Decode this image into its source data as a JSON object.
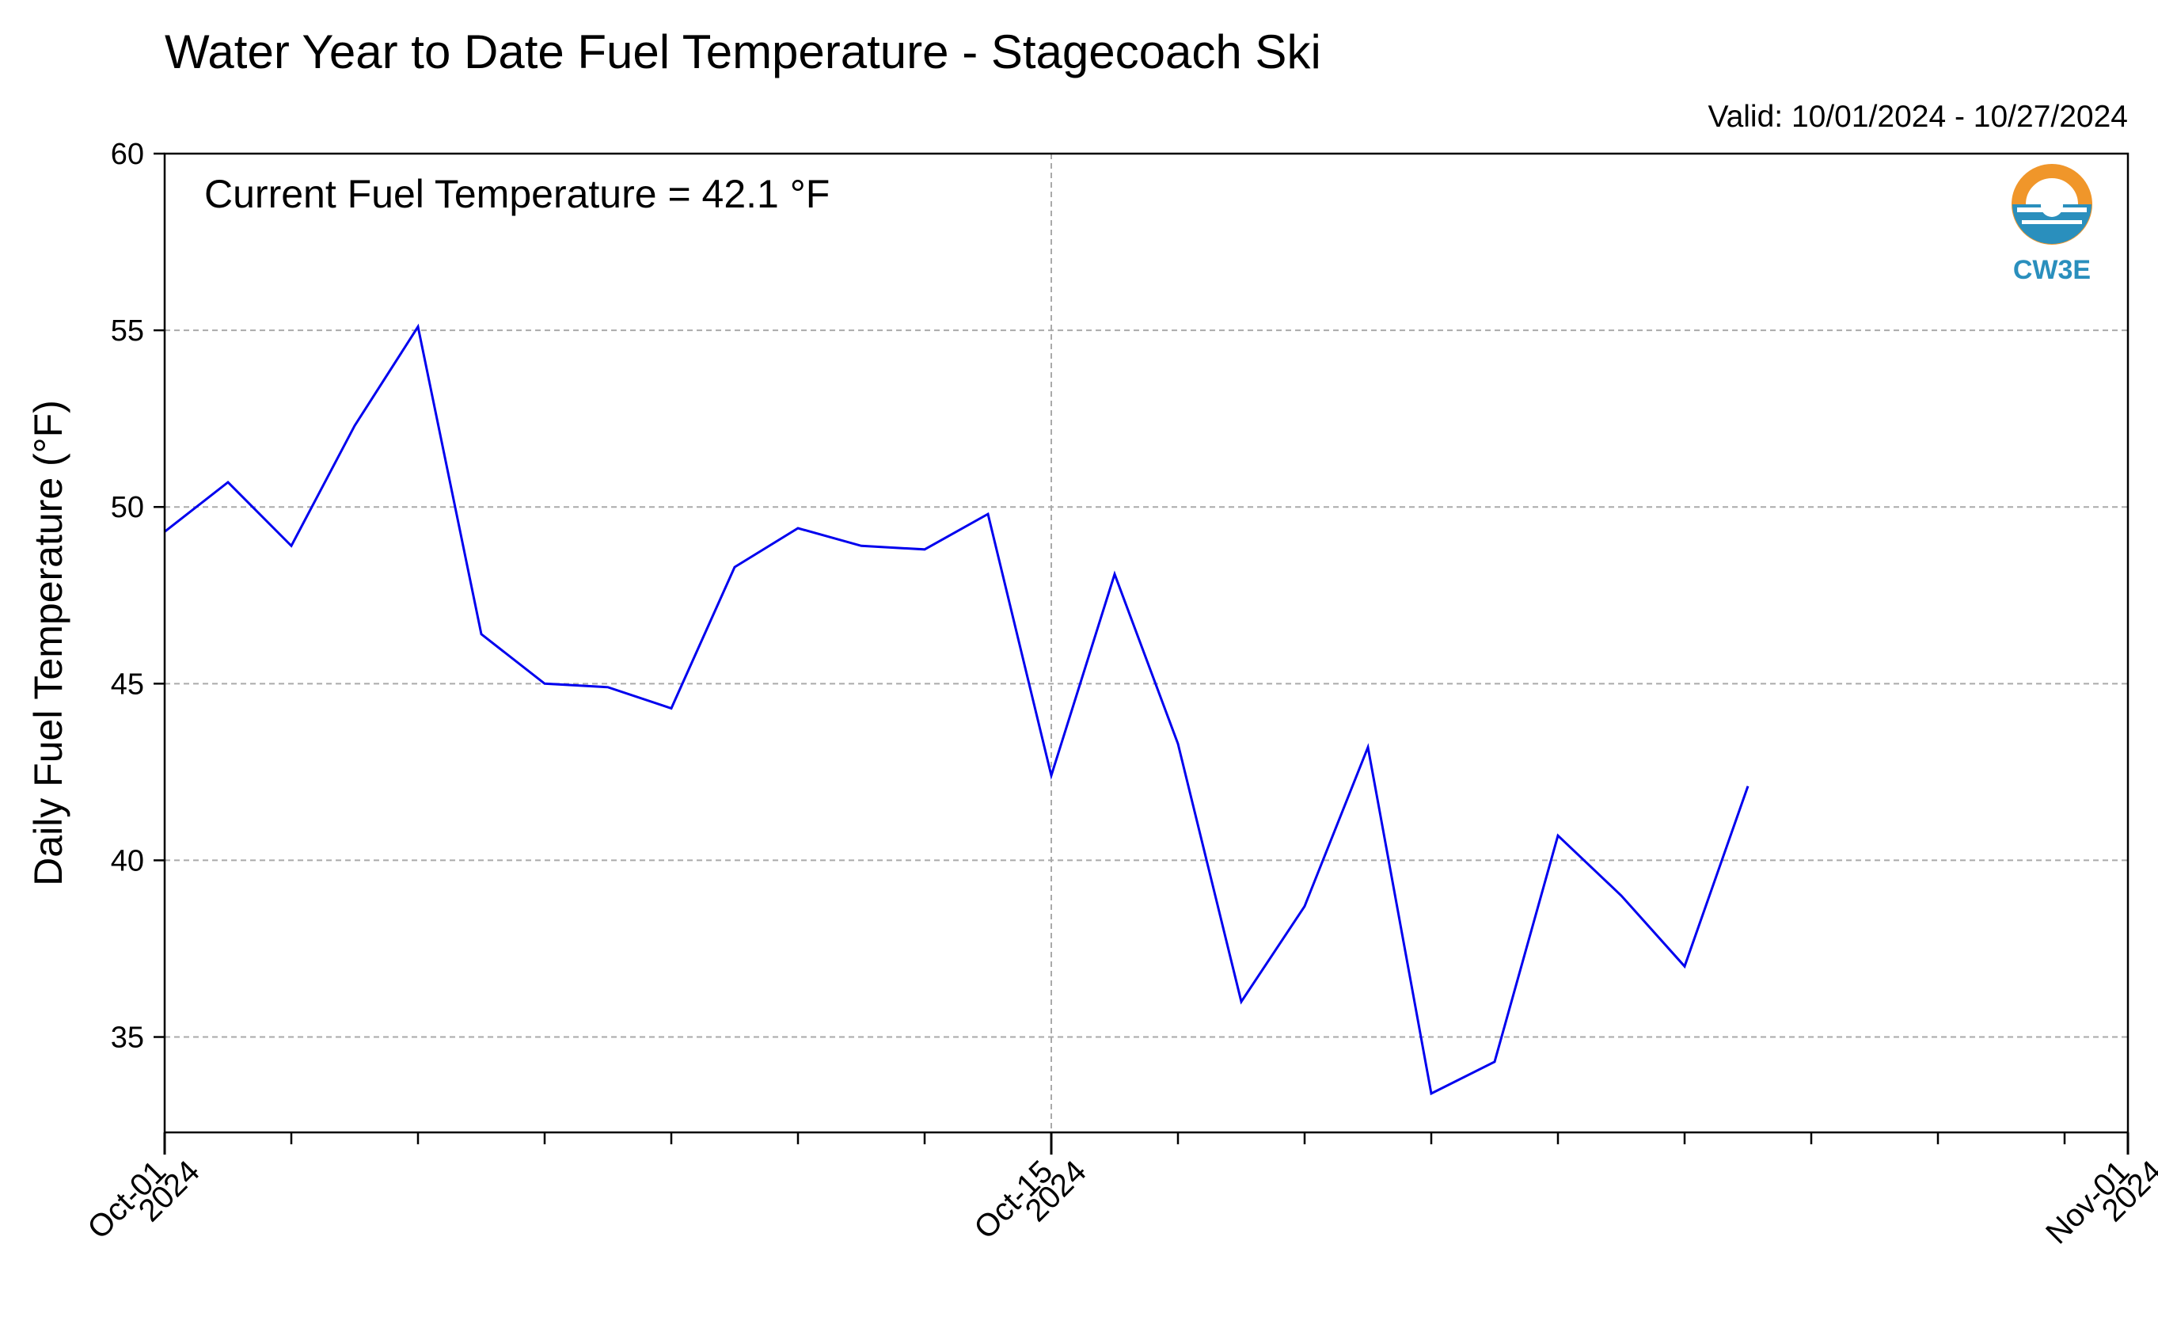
{
  "chart_data": {
    "type": "line",
    "title": "Water Year to Date Fuel Temperature - Stagecoach Ski",
    "valid_label": "Valid: 10/01/2024 - 10/27/2024",
    "annotation": "Current Fuel Temperature = 42.1 °F",
    "ylabel": "Daily Fuel Temperature (°F)",
    "xlabel": "",
    "ylim": [
      32.3,
      60
    ],
    "xlim": [
      "2024-10-01",
      "2024-11-01"
    ],
    "grid": true,
    "y_ticks": [
      35,
      40,
      45,
      50,
      55,
      60
    ],
    "x_major_ticks": [
      {
        "date": "2024-10-01",
        "line1": "Oct-01",
        "line2": "2024"
      },
      {
        "date": "2024-10-15",
        "line1": "Oct-15",
        "line2": "2024"
      },
      {
        "date": "2024-11-01",
        "line1": "Nov-01",
        "line2": "2024"
      }
    ],
    "x": [
      "2024-10-01",
      "2024-10-02",
      "2024-10-03",
      "2024-10-04",
      "2024-10-05",
      "2024-10-06",
      "2024-10-07",
      "2024-10-08",
      "2024-10-09",
      "2024-10-10",
      "2024-10-11",
      "2024-10-12",
      "2024-10-13",
      "2024-10-14",
      "2024-10-15",
      "2024-10-16",
      "2024-10-17",
      "2024-10-18",
      "2024-10-19",
      "2024-10-20",
      "2024-10-21",
      "2024-10-22",
      "2024-10-23",
      "2024-10-24",
      "2024-10-25",
      "2024-10-26",
      "2024-10-27"
    ],
    "series": [
      {
        "color": "#0000ee",
        "values": [
          49.3,
          50.7,
          48.9,
          52.3,
          55.1,
          46.4,
          45.0,
          44.9,
          44.3,
          48.3,
          49.4,
          48.9,
          48.8,
          49.8,
          42.4,
          48.1,
          43.3,
          36.0,
          38.7,
          43.2,
          33.4,
          34.3,
          40.7,
          39.0,
          37.0,
          42.1,
          null
        ]
      }
    ]
  },
  "logo": {
    "text": "CW3E",
    "orange": "#f0962a",
    "blue": "#2a8fbd"
  }
}
